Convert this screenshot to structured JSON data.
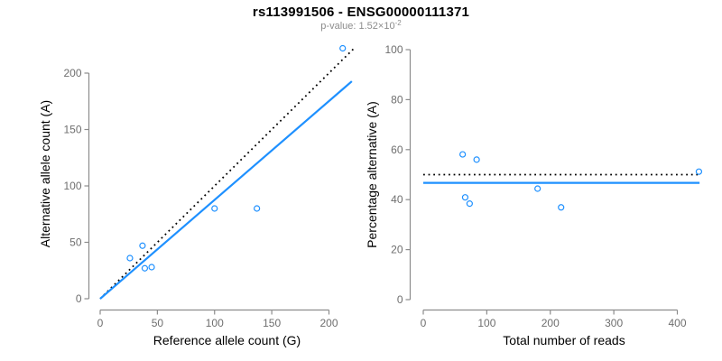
{
  "header": {
    "title": "rs113991506 - ENSG00000111371",
    "p_value_base": "p-value: 1.52×10",
    "p_value_exponent": "-2"
  },
  "colors": {
    "point": "#1E90FF",
    "fit_line": "#1E90FF",
    "reference_line": "#000000",
    "axis_line": "#8c8c8c",
    "tick_label": "#6e6e6e",
    "axis_title": "#000000"
  },
  "chart_data": [
    {
      "name": "allele-counts",
      "type": "scatter",
      "xlabel": "Reference allele count (G)",
      "ylabel": "Alternative allele count (A)",
      "xlim": [
        0,
        200
      ],
      "ylim": [
        0,
        200
      ],
      "xticks": [
        0,
        50,
        100,
        150,
        200
      ],
      "yticks": [
        0,
        50,
        100,
        150,
        200
      ],
      "grid": false,
      "legend": "none",
      "points": [
        [
          26,
          36
        ],
        [
          37,
          47
        ],
        [
          39,
          27
        ],
        [
          45,
          28
        ],
        [
          100,
          80
        ],
        [
          137,
          80
        ],
        [
          212,
          222
        ]
      ],
      "lines": [
        {
          "name": "identity-line",
          "style": "dotted",
          "color_key": "reference_line",
          "slope": 1,
          "intercept": 0,
          "x_range": [
            0,
            222
          ]
        },
        {
          "name": "regression-line",
          "style": "solid",
          "color_key": "fit_line",
          "slope": 0.876,
          "intercept": 0,
          "x_range": [
            0,
            220
          ]
        }
      ]
    },
    {
      "name": "percentage-alternative",
      "type": "scatter",
      "xlabel": "Total number of reads",
      "ylabel": "Percentage alternative (A)",
      "xlim": [
        0,
        400
      ],
      "ylim": [
        0,
        100
      ],
      "xticks": [
        0,
        100,
        200,
        300,
        400
      ],
      "yticks": [
        0,
        20,
        40,
        60,
        80,
        100
      ],
      "grid": false,
      "legend": "none",
      "points": [
        [
          62,
          58.1
        ],
        [
          84,
          56.0
        ],
        [
          66,
          40.9
        ],
        [
          73,
          38.4
        ],
        [
          180,
          44.4
        ],
        [
          217,
          36.9
        ],
        [
          434,
          51.2
        ]
      ],
      "lines": [
        {
          "name": "expected-percentage-line",
          "style": "dotted",
          "color_key": "reference_line",
          "y": 50,
          "x_range": [
            0,
            437
          ]
        },
        {
          "name": "observed-percentage-line",
          "style": "solid",
          "color_key": "fit_line",
          "y": 46.7,
          "x_range": [
            0,
            435
          ]
        }
      ]
    }
  ]
}
